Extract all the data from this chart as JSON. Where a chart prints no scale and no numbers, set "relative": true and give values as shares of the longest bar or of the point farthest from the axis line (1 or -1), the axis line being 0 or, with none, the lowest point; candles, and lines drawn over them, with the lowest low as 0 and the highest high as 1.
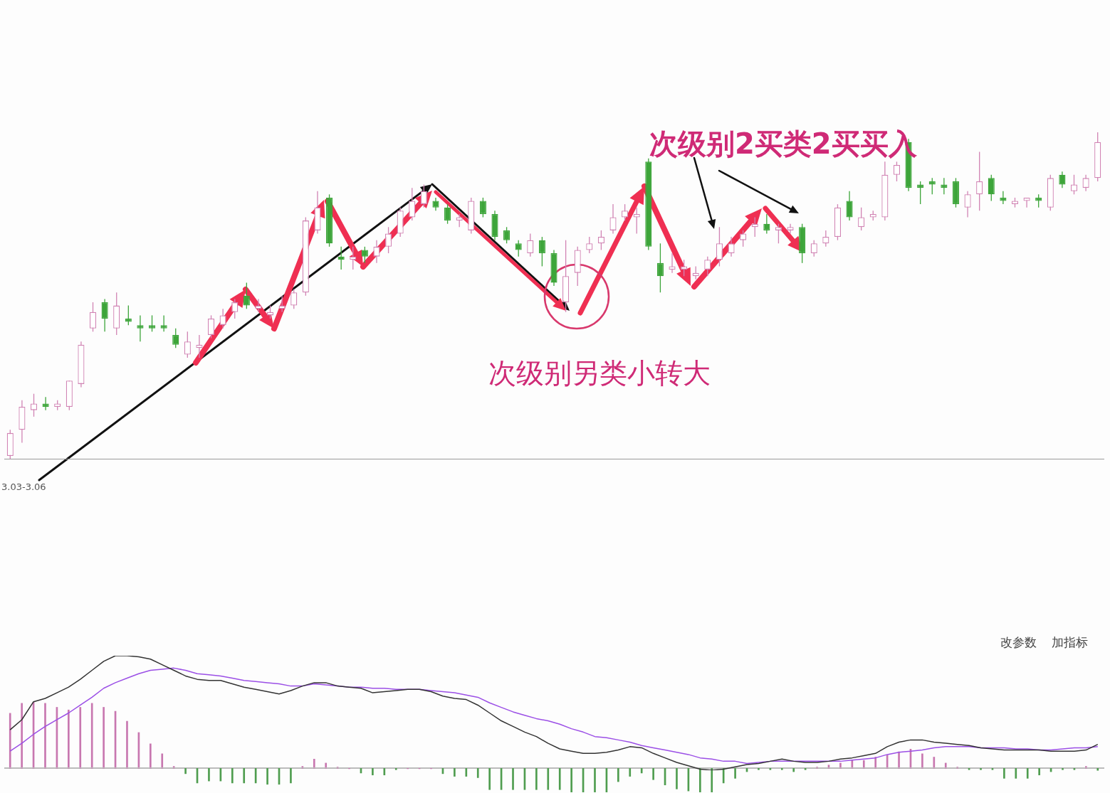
{
  "chart_data": [
    {
      "type": "candlestick",
      "relative": true,
      "categories": [
        null,
        null,
        null,
        null,
        null,
        null,
        null,
        null,
        null,
        null,
        null,
        null,
        null,
        null,
        null,
        null,
        null,
        null,
        null,
        null,
        null,
        null,
        null,
        null,
        null,
        null,
        null,
        null,
        null,
        null,
        null,
        null,
        null,
        null,
        null,
        null,
        null,
        null,
        null,
        null,
        null,
        null,
        null,
        null,
        null,
        null,
        null,
        null,
        null,
        null,
        null,
        null,
        null,
        null,
        null,
        null,
        null,
        null,
        null,
        null,
        null,
        null,
        null,
        null,
        null,
        null,
        null,
        null,
        null,
        null,
        null,
        null,
        null,
        null,
        null,
        null,
        null,
        null,
        null,
        null,
        null,
        null,
        null,
        null,
        null,
        null,
        null,
        null,
        null,
        null,
        null,
        null,
        null
      ],
      "ohlc": [
        [
          0.01,
          0.09,
          0,
          0.08
        ],
        [
          0.09,
          0.18,
          0.05,
          0.16
        ],
        [
          0.15,
          0.2,
          0.13,
          0.17
        ],
        [
          0.17,
          0.19,
          0.15,
          0.16
        ],
        [
          0.16,
          0.18,
          0.15,
          0.17
        ],
        [
          0.16,
          0.24,
          0.15,
          0.24
        ],
        [
          0.23,
          0.36,
          0.22,
          0.35
        ],
        [
          0.4,
          0.48,
          0.39,
          0.45
        ],
        [
          0.48,
          0.49,
          0.39,
          0.43
        ],
        [
          0.4,
          0.51,
          0.38,
          0.47
        ],
        [
          0.43,
          0.47,
          0.41,
          0.42
        ],
        [
          0.41,
          0.44,
          0.36,
          0.4
        ],
        [
          0.41,
          0.44,
          0.39,
          0.4
        ],
        [
          0.41,
          0.44,
          0.39,
          0.4
        ],
        [
          0.38,
          0.4,
          0.34,
          0.35
        ],
        [
          0.32,
          0.39,
          0.31,
          0.36
        ],
        [
          0.34,
          0.38,
          0.31,
          0.35
        ],
        [
          0.38,
          0.44,
          0.37,
          0.43
        ],
        [
          0.41,
          0.46,
          0.4,
          0.44
        ],
        [
          0.45,
          0.49,
          0.43,
          0.48
        ],
        [
          0.5,
          0.54,
          0.46,
          0.47
        ],
        [
          0.46,
          0.49,
          0.45,
          0.47
        ],
        [
          0.44,
          0.47,
          0.43,
          0.45
        ],
        [
          0.46,
          0.5,
          0.45,
          0.47
        ],
        [
          0.47,
          0.52,
          0.46,
          0.51
        ],
        [
          0.51,
          0.74,
          0.5,
          0.73
        ],
        [
          0.7,
          0.82,
          0.69,
          0.77
        ],
        [
          0.8,
          0.81,
          0.65,
          0.66
        ],
        [
          0.62,
          0.65,
          0.58,
          0.61
        ],
        [
          0.61,
          0.65,
          0.58,
          0.62
        ],
        [
          0.64,
          0.65,
          0.6,
          0.62
        ],
        [
          0.62,
          0.67,
          0.6,
          0.65
        ],
        [
          0.65,
          0.71,
          0.63,
          0.69
        ],
        [
          0.69,
          0.77,
          0.68,
          0.76
        ],
        [
          0.74,
          0.83,
          0.73,
          0.79
        ],
        [
          0.78,
          0.84,
          0.77,
          0.82
        ],
        [
          0.79,
          0.8,
          0.76,
          0.77
        ],
        [
          0.77,
          0.78,
          0.72,
          0.73
        ],
        [
          0.73,
          0.75,
          0.71,
          0.74
        ],
        [
          0.7,
          0.8,
          0.69,
          0.79
        ],
        [
          0.79,
          0.8,
          0.74,
          0.75
        ],
        [
          0.75,
          0.76,
          0.67,
          0.68
        ],
        [
          0.7,
          0.71,
          0.66,
          0.67
        ],
        [
          0.66,
          0.67,
          0.62,
          0.64
        ],
        [
          0.63,
          0.69,
          0.62,
          0.67
        ],
        [
          0.67,
          0.68,
          0.59,
          0.63
        ],
        [
          0.63,
          0.64,
          0.53,
          0.54
        ],
        [
          0.48,
          0.67,
          0.45,
          0.56
        ],
        [
          0.57,
          0.65,
          0.53,
          0.64
        ],
        [
          0.64,
          0.68,
          0.63,
          0.66
        ],
        [
          0.66,
          0.7,
          0.64,
          0.68
        ],
        [
          0.7,
          0.78,
          0.69,
          0.74
        ],
        [
          0.74,
          0.78,
          0.73,
          0.76
        ],
        [
          0.74,
          0.77,
          0.69,
          0.75
        ],
        [
          0.91,
          0.92,
          0.64,
          0.65
        ],
        [
          0.6,
          0.66,
          0.51,
          0.56
        ],
        [
          0.58,
          0.63,
          0.57,
          0.59
        ],
        [
          0.58,
          0.61,
          0.56,
          0.59
        ],
        [
          0.56,
          0.59,
          0.55,
          0.57
        ],
        [
          0.58,
          0.62,
          0.56,
          0.61
        ],
        [
          0.61,
          0.71,
          0.59,
          0.66
        ],
        [
          0.63,
          0.68,
          0.62,
          0.66
        ],
        [
          0.67,
          0.7,
          0.65,
          0.69
        ],
        [
          0.71,
          0.74,
          0.68,
          0.72
        ],
        [
          0.72,
          0.75,
          0.69,
          0.7
        ],
        [
          0.7,
          0.72,
          0.66,
          0.71
        ],
        [
          0.7,
          0.72,
          0.69,
          0.71
        ],
        [
          0.71,
          0.72,
          0.6,
          0.63
        ],
        [
          0.63,
          0.67,
          0.62,
          0.66
        ],
        [
          0.66,
          0.7,
          0.65,
          0.68
        ],
        [
          0.68,
          0.78,
          0.67,
          0.77
        ],
        [
          0.79,
          0.82,
          0.73,
          0.74
        ],
        [
          0.71,
          0.77,
          0.7,
          0.74
        ],
        [
          0.74,
          0.76,
          0.73,
          0.75
        ],
        [
          0.74,
          0.91,
          0.73,
          0.87
        ],
        [
          0.87,
          0.91,
          0.85,
          0.9
        ],
        [
          0.97,
          0.98,
          0.82,
          0.83
        ],
        [
          0.84,
          0.85,
          0.78,
          0.83
        ],
        [
          0.85,
          0.86,
          0.81,
          0.84
        ],
        [
          0.84,
          0.86,
          0.81,
          0.83
        ],
        [
          0.85,
          0.86,
          0.77,
          0.78
        ],
        [
          0.77,
          0.82,
          0.74,
          0.81
        ],
        [
          0.81,
          0.94,
          0.76,
          0.85
        ],
        [
          0.86,
          0.87,
          0.79,
          0.81
        ],
        [
          0.8,
          0.82,
          0.78,
          0.79
        ],
        [
          0.78,
          0.8,
          0.77,
          0.79
        ],
        [
          0.79,
          0.8,
          0.77,
          0.8
        ],
        [
          0.8,
          0.81,
          0.77,
          0.79
        ],
        [
          0.77,
          0.87,
          0.76,
          0.86
        ],
        [
          0.87,
          0.88,
          0.83,
          0.84
        ],
        [
          0.82,
          0.87,
          0.81,
          0.84
        ],
        [
          0.83,
          0.87,
          0.82,
          0.86
        ],
        [
          0.86,
          1,
          0.85,
          0.97
        ]
      ],
      "annotations": [
        "次级别2买类2买买入",
        "次级别另类小转大",
        "3.03-3.06"
      ]
    },
    {
      "type": "line",
      "relative": true,
      "marker": "none",
      "categories": [
        null,
        null,
        null,
        null,
        null,
        null,
        null,
        null,
        null,
        null,
        null,
        null,
        null,
        null,
        null,
        null,
        null,
        null,
        null,
        null,
        null,
        null,
        null,
        null,
        null,
        null,
        null,
        null,
        null,
        null,
        null,
        null,
        null,
        null,
        null,
        null,
        null,
        null,
        null,
        null,
        null,
        null,
        null,
        null,
        null,
        null,
        null,
        null,
        null,
        null,
        null,
        null,
        null,
        null,
        null,
        null,
        null,
        null,
        null,
        null,
        null,
        null,
        null,
        null,
        null,
        null,
        null,
        null,
        null,
        null,
        null,
        null,
        null,
        null,
        null,
        null,
        null,
        null,
        null,
        null,
        null,
        null,
        null,
        null,
        null,
        null,
        null,
        null,
        null,
        null,
        null,
        null,
        null,
        null
      ],
      "series": [
        {
          "color": "#333333",
          "values": [
            0.34,
            0.43,
            0.59,
            0.62,
            0.67,
            0.72,
            0.79,
            0.87,
            0.95,
            1.0,
            1.0,
            0.99,
            0.97,
            0.92,
            0.87,
            0.82,
            0.79,
            0.78,
            0.78,
            0.75,
            0.72,
            0.7,
            0.68,
            0.66,
            0.69,
            0.73,
            0.76,
            0.76,
            0.73,
            0.72,
            0.71,
            0.67,
            0.68,
            0.69,
            0.7,
            0.7,
            0.68,
            0.64,
            0.62,
            0.61,
            0.56,
            0.49,
            0.42,
            0.37,
            0.32,
            0.28,
            0.22,
            0.17,
            0.15,
            0.13,
            0.13,
            0.14,
            0.16,
            0.19,
            0.18,
            0.13,
            0.09,
            0.05,
            0.02,
            -0.01,
            -0.02,
            -0.01,
            0.01,
            0.03,
            0.04,
            0.06,
            0.08,
            0.06,
            0.05,
            0.05,
            0.06,
            0.08,
            0.09,
            0.11,
            0.13,
            0.19,
            0.23,
            0.25,
            0.25,
            0.23,
            0.22,
            0.21,
            0.2,
            0.18,
            0.17,
            0.16,
            0.16,
            0.16,
            0.16,
            0.15,
            0.15,
            0.15,
            0.16,
            0.21
          ]
        },
        {
          "color": "#9b4fe6",
          "values": [
            0.15,
            0.22,
            0.3,
            0.37,
            0.43,
            0.49,
            0.56,
            0.63,
            0.71,
            0.76,
            0.8,
            0.84,
            0.87,
            0.88,
            0.89,
            0.87,
            0.84,
            0.83,
            0.82,
            0.8,
            0.78,
            0.77,
            0.76,
            0.75,
            0.73,
            0.73,
            0.75,
            0.74,
            0.73,
            0.72,
            0.72,
            0.71,
            0.71,
            0.7,
            0.7,
            0.7,
            0.69,
            0.68,
            0.67,
            0.65,
            0.63,
            0.58,
            0.54,
            0.5,
            0.47,
            0.44,
            0.42,
            0.39,
            0.35,
            0.32,
            0.28,
            0.27,
            0.25,
            0.23,
            0.2,
            0.18,
            0.16,
            0.14,
            0.12,
            0.09,
            0.08,
            0.06,
            0.06,
            0.04,
            0.05,
            0.06,
            0.06,
            0.06,
            0.06,
            0.06,
            0.06,
            0.06,
            0.07,
            0.08,
            0.09,
            0.12,
            0.14,
            0.15,
            0.16,
            0.18,
            0.19,
            0.19,
            0.19,
            0.18,
            0.18,
            0.18,
            0.17,
            0.17,
            0.16,
            0.16,
            0.17,
            0.18,
            0.18,
            0.19
          ]
        }
      ],
      "annotations": [
        "改参数",
        "加指标"
      ]
    },
    {
      "type": "bar",
      "relative": true,
      "categories": [
        null,
        null,
        null,
        null,
        null,
        null,
        null,
        null,
        null,
        null,
        null,
        null,
        null,
        null,
        null,
        null,
        null,
        null,
        null,
        null,
        null,
        null,
        null,
        null,
        null,
        null,
        null,
        null,
        null,
        null,
        null,
        null,
        null,
        null,
        null,
        null,
        null,
        null,
        null,
        null,
        null,
        null,
        null,
        null,
        null,
        null,
        null,
        null,
        null,
        null,
        null,
        null,
        null,
        null,
        null,
        null,
        null,
        null,
        null,
        null,
        null,
        null,
        null,
        null,
        null,
        null,
        null,
        null,
        null,
        null,
        null,
        null,
        null,
        null,
        null,
        null,
        null,
        null,
        null,
        null,
        null,
        null,
        null,
        null,
        null,
        null,
        null,
        null,
        null,
        null,
        null,
        null,
        null,
        null
      ],
      "values": [
        0.83,
        0.98,
        1,
        0.98,
        0.92,
        0.88,
        0.92,
        0.98,
        0.92,
        0.86,
        0.71,
        0.54,
        0.37,
        0.22,
        0.03,
        -0.08,
        -0.22,
        -0.19,
        -0.19,
        -0.22,
        -0.22,
        -0.22,
        -0.24,
        -0.24,
        -0.22,
        0.03,
        0.14,
        0.08,
        0.02,
        0,
        -0.07,
        -0.1,
        -0.1,
        -0.02,
        0,
        0,
        0,
        -0.08,
        -0.12,
        -0.12,
        -0.14,
        -0.32,
        -0.32,
        -0.32,
        -0.32,
        -0.32,
        -0.32,
        -0.32,
        -0.36,
        -0.36,
        -0.36,
        -0.36,
        -0.2,
        -0.12,
        -0.07,
        -0.17,
        -0.25,
        -0.31,
        -0.34,
        -0.36,
        -0.36,
        -0.22,
        -0.15,
        -0.05,
        -0.02,
        -0.02,
        -0.02,
        -0.05,
        -0.02,
        0.02,
        0.05,
        0.08,
        0.12,
        0.12,
        0.17,
        0.2,
        0.25,
        0.29,
        0.22,
        0.17,
        0.08,
        0.02,
        -0.02,
        -0.02,
        -0.02,
        -0.15,
        -0.15,
        -0.15,
        -0.1,
        -0.05,
        -0.02,
        -0.02,
        0.03,
        -0.03
      ],
      "colors": [
        "#c877b0",
        "#c877b0",
        "#c877b0",
        "#c877b0",
        "#c877b0",
        "#c877b0",
        "#c877b0",
        "#c877b0",
        "#c877b0",
        "#c877b0",
        "#c877b0",
        "#c877b0",
        "#c877b0",
        "#c877b0",
        "#c877b0",
        "#4f9d4f",
        "#4f9d4f",
        "#4f9d4f",
        "#4f9d4f",
        "#4f9d4f",
        "#4f9d4f",
        "#4f9d4f",
        "#4f9d4f",
        "#4f9d4f",
        "#4f9d4f",
        "#c877b0",
        "#c877b0",
        "#c877b0",
        "#c877b0",
        "#c877b0",
        "#4f9d4f",
        "#4f9d4f",
        "#4f9d4f",
        "#4f9d4f",
        "#c877b0",
        "#c877b0",
        "#c877b0",
        "#4f9d4f",
        "#4f9d4f",
        "#4f9d4f",
        "#4f9d4f",
        "#4f9d4f",
        "#4f9d4f",
        "#4f9d4f",
        "#4f9d4f",
        "#4f9d4f",
        "#4f9d4f",
        "#4f9d4f",
        "#4f9d4f",
        "#4f9d4f",
        "#4f9d4f",
        "#4f9d4f",
        "#4f9d4f",
        "#4f9d4f",
        "#4f9d4f",
        "#4f9d4f",
        "#4f9d4f",
        "#4f9d4f",
        "#4f9d4f",
        "#4f9d4f",
        "#4f9d4f",
        "#4f9d4f",
        "#4f9d4f",
        "#4f9d4f",
        "#4f9d4f",
        "#4f9d4f",
        "#4f9d4f",
        "#4f9d4f",
        "#4f9d4f",
        "#c877b0",
        "#c877b0",
        "#c877b0",
        "#c877b0",
        "#c877b0",
        "#c877b0",
        "#c877b0",
        "#c877b0",
        "#c877b0",
        "#c877b0",
        "#c877b0",
        "#c877b0",
        "#c877b0",
        "#4f9d4f",
        "#4f9d4f",
        "#4f9d4f",
        "#4f9d4f",
        "#4f9d4f",
        "#4f9d4f",
        "#4f9d4f",
        "#4f9d4f",
        "#4f9d4f",
        "#4f9d4f",
        "#c877b0",
        "#4f9d4f"
      ]
    }
  ]
}
